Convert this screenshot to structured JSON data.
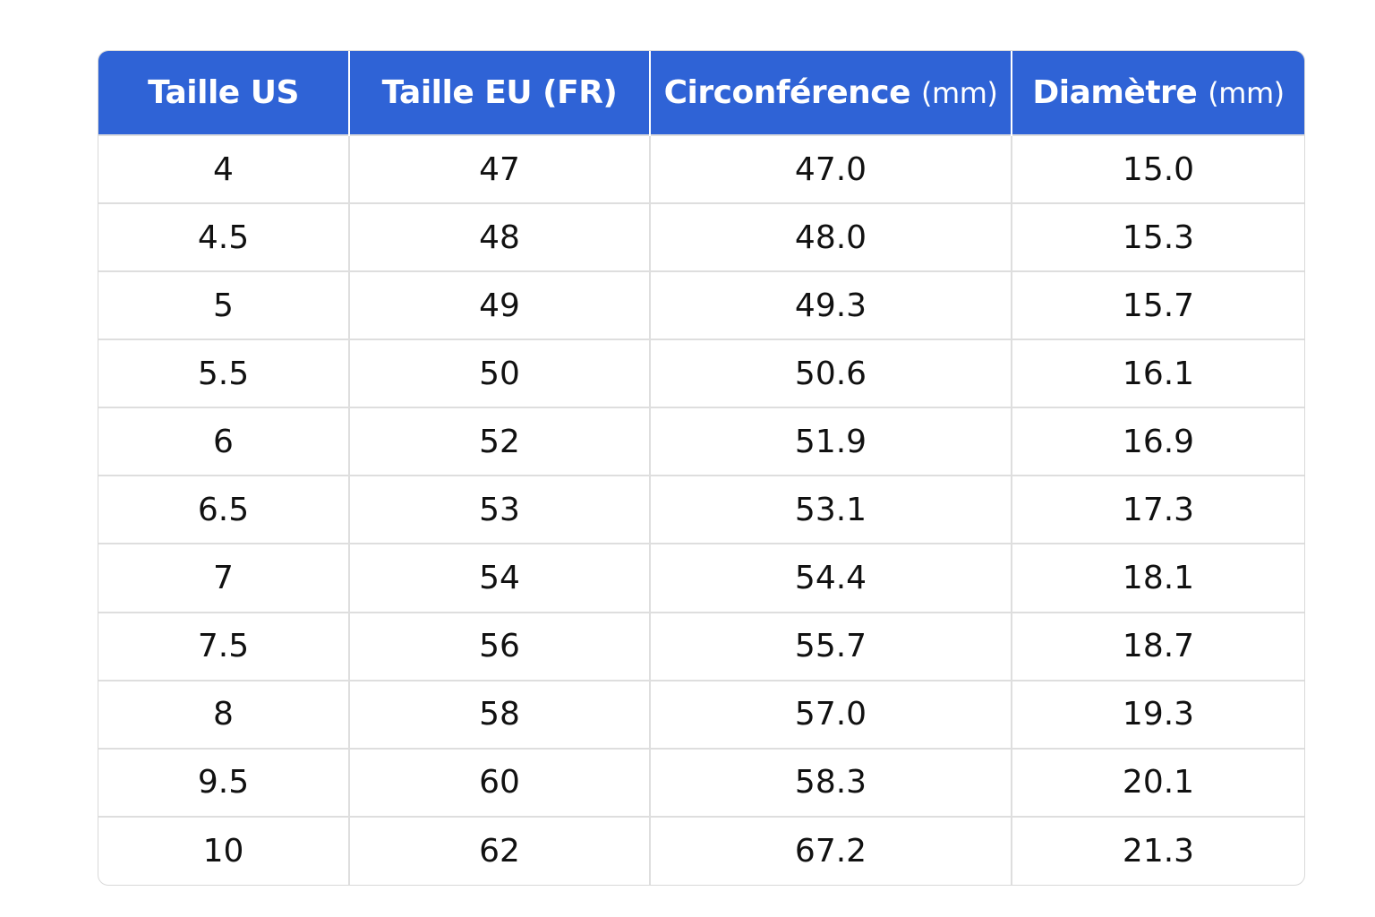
{
  "table": {
    "headers": [
      {
        "main": "Taille US",
        "unit": ""
      },
      {
        "main": "Taille EU (FR)",
        "unit": ""
      },
      {
        "main": "Circonférence",
        "unit": "(mm)"
      },
      {
        "main": "Diamètre",
        "unit": "(mm)"
      }
    ],
    "rows": [
      [
        "4",
        "47",
        "47.0",
        "15.0"
      ],
      [
        "4.5",
        "48",
        "48.0",
        "15.3"
      ],
      [
        "5",
        "49",
        "49.3",
        "15.7"
      ],
      [
        "5.5",
        "50",
        "50.6",
        "16.1"
      ],
      [
        "6",
        "52",
        "51.9",
        "16.9"
      ],
      [
        "6.5",
        "53",
        "53.1",
        "17.3"
      ],
      [
        "7",
        "54",
        "54.4",
        "18.1"
      ],
      [
        "7.5",
        "56",
        "55.7",
        "18.7"
      ],
      [
        "8",
        "58",
        "57.0",
        "19.3"
      ],
      [
        "9.5",
        "60",
        "58.3",
        "20.1"
      ],
      [
        "10",
        "62",
        "67.2",
        "21.3"
      ]
    ]
  },
  "colors": {
    "header_bg": "#2f63d6",
    "header_text": "#ffffff",
    "cell_text": "#111111",
    "grid_line": "#dedede"
  }
}
